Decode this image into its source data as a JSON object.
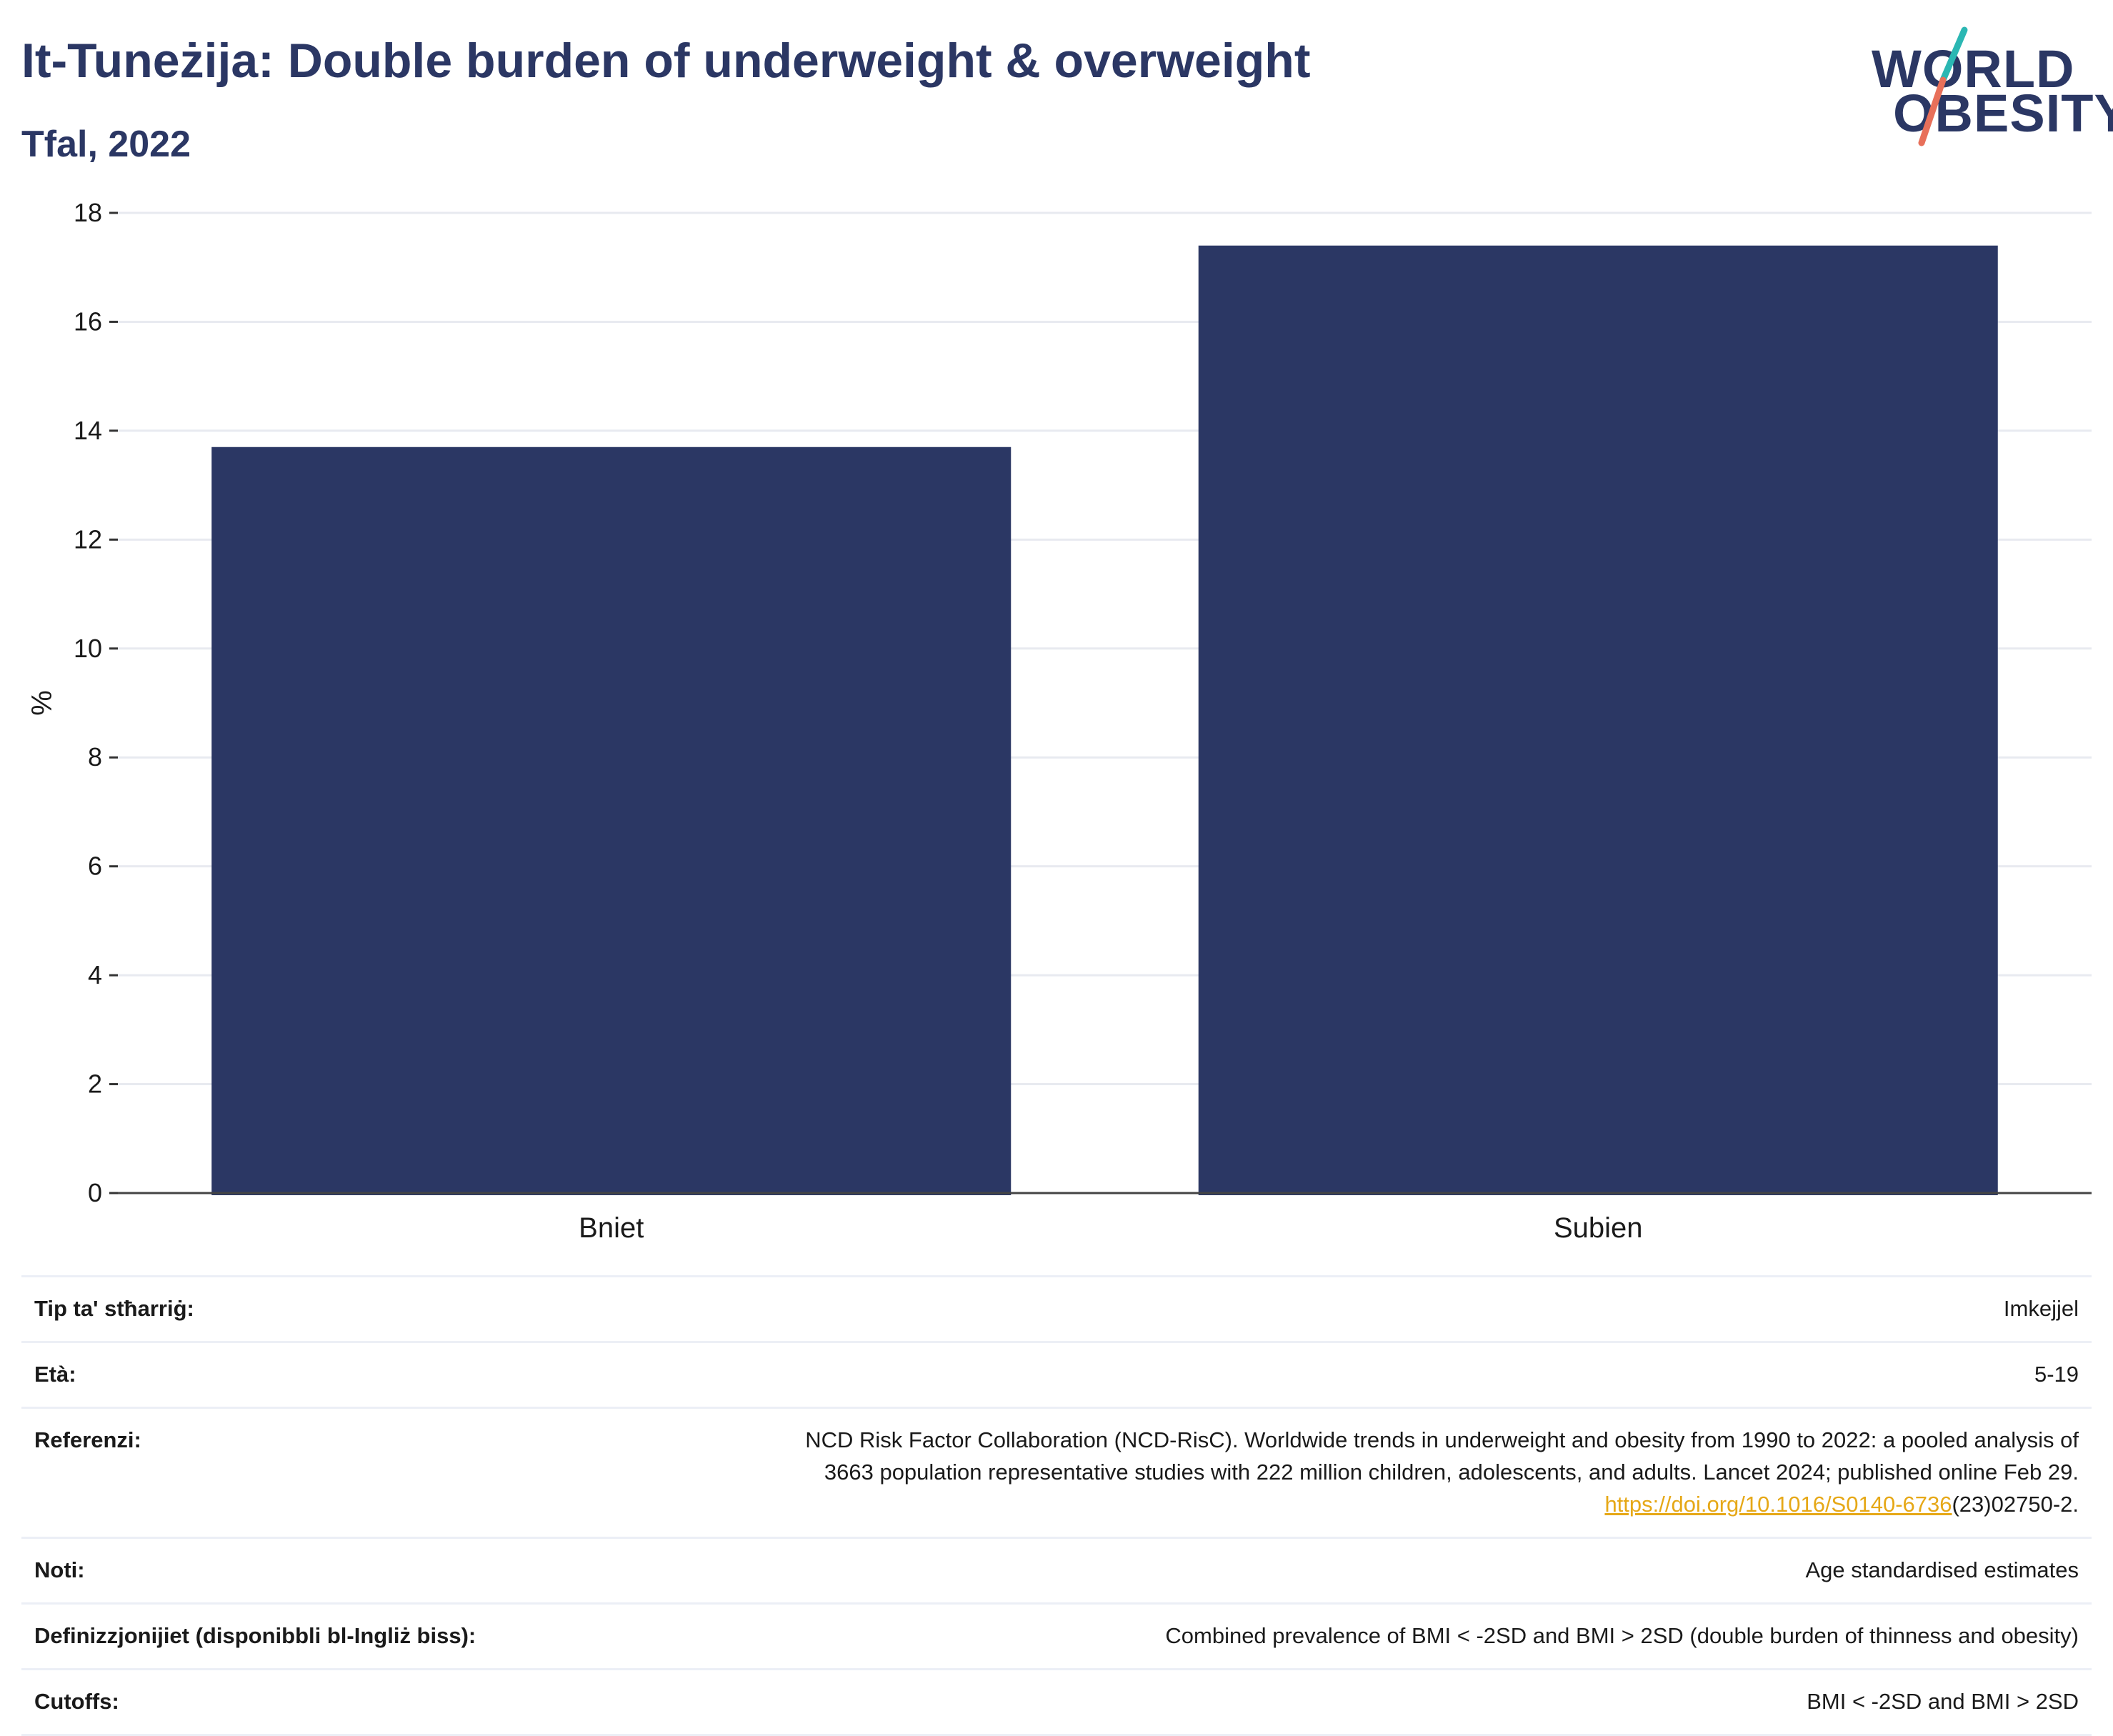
{
  "header": {
    "title": "It-Tuneżija: Double burden of underweight & overweight",
    "subtitle": "Tfal, 2022"
  },
  "logo": {
    "line1": "WORLD",
    "line2": "OBESITY",
    "slash_colors": [
      "#2bb7b3",
      "#e8705a"
    ]
  },
  "chart_data": {
    "type": "bar",
    "categories": [
      "Bniet",
      "Subien"
    ],
    "values": [
      13.7,
      17.4
    ],
    "ylabel": "%",
    "xlabel": "",
    "ylim": [
      0,
      18
    ],
    "yticks": [
      0,
      2,
      4,
      6,
      8,
      10,
      12,
      14,
      16,
      18
    ],
    "grid": true,
    "bar_color": "#2b3764"
  },
  "meta": {
    "rows": [
      {
        "key": "Tip ta' stħarriġ:",
        "value": "Imkejjel"
      },
      {
        "key": "Età:",
        "value": "5-19"
      },
      {
        "key": "Referenzi:",
        "value_lines": [
          "NCD Risk Factor Collaboration (NCD-RisC). Worldwide trends in underweight and obesity from 1990 to 2022: a pooled analysis of",
          "3663 population representative studies with 222 million children, adolescents, and adults. Lancet 2024; published online Feb 29."
        ],
        "link_text": "https://doi.org/10.1016/S0140-6736",
        "link_suffix": "(23)02750-2."
      },
      {
        "key": "Noti:",
        "value": "Age standardised estimates"
      },
      {
        "key": "Definizzjonijiet (disponibbli bl-Ingliż biss):",
        "value": "Combined prevalence of BMI < -2SD and BMI > 2SD (double burden of thinness and obesity)"
      },
      {
        "key": "Cutoffs:",
        "value": "BMI < -2SD and BMI > 2SD"
      }
    ]
  }
}
